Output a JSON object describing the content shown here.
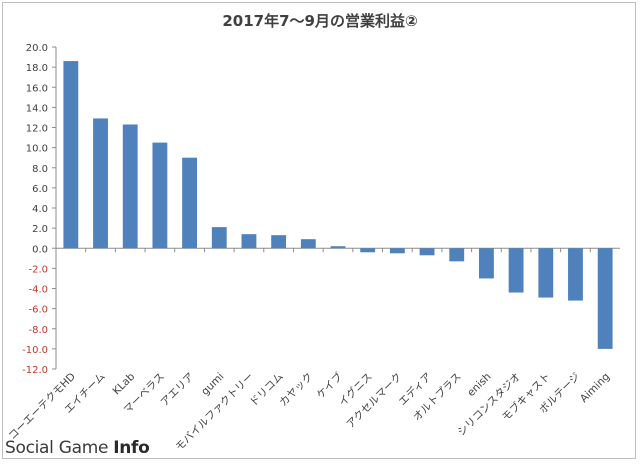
{
  "chart_data": {
    "type": "bar",
    "title": "2017年7～9月の営業利益②",
    "xlabel": "",
    "ylabel": "",
    "ylim": [
      -12,
      20
    ],
    "ytick_step": 2,
    "ytick_labels": [
      "20.0",
      "18.0",
      "16.0",
      "14.0",
      "12.0",
      "10.0",
      "8.0",
      "6.0",
      "4.0",
      "2.0",
      "0.0",
      "-2.0",
      "-4.0",
      "-6.0",
      "-8.0",
      "-10.0",
      "-12.0"
    ],
    "grid": false,
    "legend": "none",
    "categories": [
      "コーエーテクモHD",
      "エイチーム",
      "KLab",
      "マーベラス",
      "アエリア",
      "gumi",
      "モバイルファクトリー",
      "ドリコム",
      "カヤック",
      "ケイブ",
      "イグニス",
      "アクセルマーク",
      "エディア",
      "オルトプラス",
      "enish",
      "シリコンスタジオ",
      "モブキャスト",
      "ボルテージ",
      "Aiming"
    ],
    "values": [
      18.6,
      12.9,
      12.3,
      10.5,
      9.0,
      2.1,
      1.4,
      1.3,
      0.9,
      0.2,
      -0.4,
      -0.5,
      -0.7,
      -1.3,
      -3.0,
      -4.4,
      -4.9,
      -5.2,
      -10.0
    ]
  },
  "colors": {
    "bar": "#4f81bd",
    "positive_tick": "#404040",
    "negative_tick": "#c0392b"
  },
  "footer": {
    "brand_light": "Social Game ",
    "brand_bold": "Info"
  }
}
